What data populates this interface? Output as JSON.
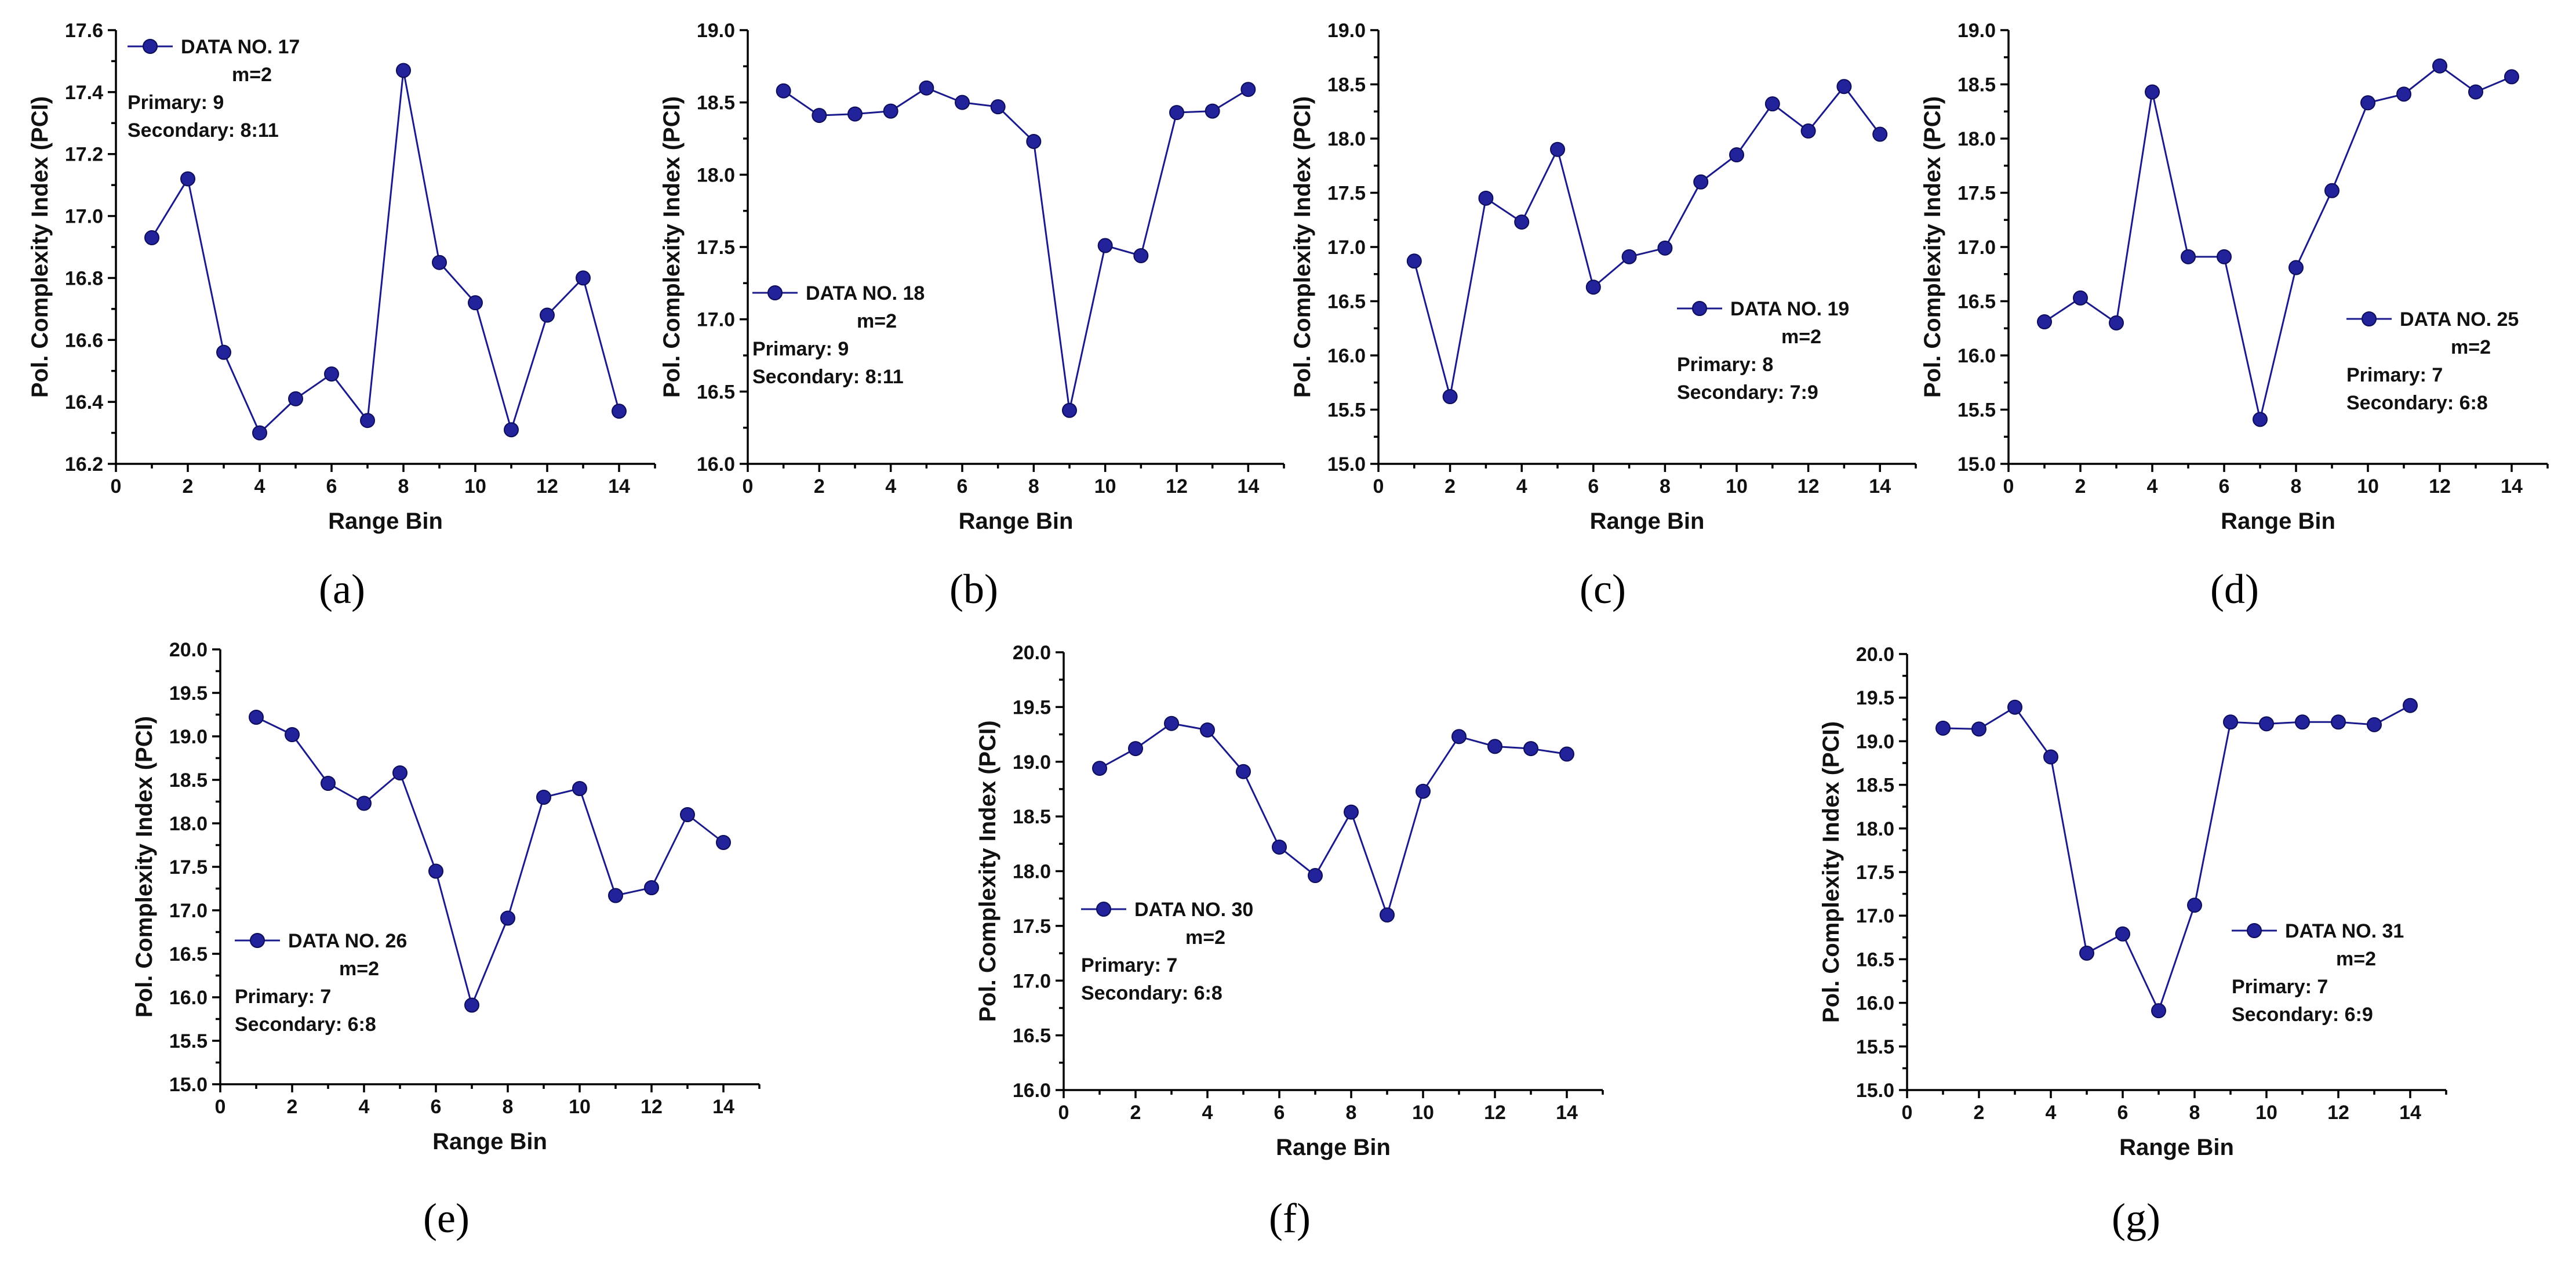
{
  "chart_data": [
    {
      "type": "line",
      "panel_label": "(a)",
      "legend_position": "top-left",
      "xlabel": "Range Bin",
      "ylabel": "Pol. Complexity Index (PCI)",
      "xlim": [
        0,
        15
      ],
      "ylim": [
        16.2,
        17.6
      ],
      "xticks": [
        0,
        2,
        4,
        6,
        8,
        10,
        12,
        14
      ],
      "yticks": [
        16.2,
        16.4,
        16.6,
        16.8,
        17.0,
        17.2,
        17.4,
        17.6
      ],
      "ytick_decimals": 1,
      "x": [
        1,
        2,
        3,
        4,
        5,
        6,
        7,
        8,
        9,
        10,
        11,
        12,
        13,
        14
      ],
      "series": [
        {
          "name": "DATA NO. 17",
          "values": [
            16.93,
            17.12,
            16.56,
            16.3,
            16.41,
            16.49,
            16.34,
            17.47,
            16.85,
            16.72,
            16.31,
            16.68,
            16.8,
            16.37
          ]
        }
      ],
      "legend": {
        "series": "DATA NO. 17",
        "m": "m=2",
        "primary": "Primary: 9",
        "secondary": "Secondary: 8:11"
      }
    },
    {
      "type": "line",
      "panel_label": "(b)",
      "legend_position": "middle-left",
      "xlabel": "Range Bin",
      "ylabel": "Pol. Complexity Index (PCI)",
      "xlim": [
        0,
        15
      ],
      "ylim": [
        16.0,
        19.0
      ],
      "xticks": [
        0,
        2,
        4,
        6,
        8,
        10,
        12,
        14
      ],
      "yticks": [
        16.0,
        16.5,
        17.0,
        17.5,
        18.0,
        18.5,
        19.0
      ],
      "ytick_decimals": 1,
      "x": [
        1,
        2,
        3,
        4,
        5,
        6,
        7,
        8,
        9,
        10,
        11,
        12,
        13,
        14
      ],
      "series": [
        {
          "name": "DATA NO. 18",
          "values": [
            18.58,
            18.41,
            18.42,
            18.44,
            18.6,
            18.5,
            18.47,
            18.23,
            16.37,
            17.51,
            17.44,
            18.43,
            18.44,
            18.59
          ]
        }
      ],
      "legend": {
        "series": "DATA NO. 18",
        "m": "m=2",
        "primary": "Primary: 9",
        "secondary": "Secondary: 8:11"
      }
    },
    {
      "type": "line",
      "panel_label": "(c)",
      "legend_position": "lower-right",
      "xlabel": "Range Bin",
      "ylabel": "Pol. Complexity Index (PCI)",
      "xlim": [
        0,
        15
      ],
      "ylim": [
        15.0,
        19.0
      ],
      "xticks": [
        0,
        2,
        4,
        6,
        8,
        10,
        12,
        14
      ],
      "yticks": [
        15.0,
        15.5,
        16.0,
        16.5,
        17.0,
        17.5,
        18.0,
        18.5,
        19.0
      ],
      "ytick_decimals": 1,
      "x": [
        1,
        2,
        3,
        4,
        5,
        6,
        7,
        8,
        9,
        10,
        11,
        12,
        13,
        14
      ],
      "series": [
        {
          "name": "DATA NO. 19",
          "values": [
            16.87,
            15.62,
            17.45,
            17.23,
            17.9,
            16.63,
            16.91,
            16.99,
            17.6,
            17.85,
            18.32,
            18.07,
            18.48,
            18.04
          ]
        }
      ],
      "legend": {
        "series": "DATA NO. 19",
        "m": "m=2",
        "primary": "Primary: 8",
        "secondary": "Secondary: 7:9"
      }
    },
    {
      "type": "line",
      "panel_label": "(d)",
      "legend_position": "lower-right",
      "xlabel": "Range Bin",
      "ylabel": "Pol. Complexity Index (PCI)",
      "xlim": [
        0,
        15
      ],
      "ylim": [
        15.0,
        19.0
      ],
      "xticks": [
        0,
        2,
        4,
        6,
        8,
        10,
        12,
        14
      ],
      "yticks": [
        15.0,
        15.5,
        16.0,
        16.5,
        17.0,
        17.5,
        18.0,
        18.5,
        19.0
      ],
      "ytick_decimals": 1,
      "x": [
        1,
        2,
        3,
        4,
        5,
        6,
        7,
        8,
        9,
        10,
        11,
        12,
        13,
        14
      ],
      "series": [
        {
          "name": "DATA NO. 25",
          "values": [
            16.31,
            16.53,
            16.3,
            18.43,
            16.91,
            16.91,
            15.41,
            16.81,
            17.52,
            18.33,
            18.41,
            18.67,
            18.43,
            18.57
          ]
        }
      ],
      "legend": {
        "series": "DATA NO. 25",
        "m": "m=2",
        "primary": "Primary: 7",
        "secondary": "Secondary: 6:8"
      }
    },
    {
      "type": "line",
      "panel_label": "(e)",
      "legend_position": "lower-left",
      "xlabel": "Range Bin",
      "ylabel": "Pol. Complexity Index (PCI)",
      "xlim": [
        0,
        15
      ],
      "ylim": [
        15.0,
        20.0
      ],
      "xticks": [
        0,
        2,
        4,
        6,
        8,
        10,
        12,
        14
      ],
      "yticks": [
        15.0,
        15.5,
        16.0,
        16.5,
        17.0,
        17.5,
        18.0,
        18.5,
        19.0,
        19.5,
        20.0
      ],
      "ytick_decimals": 1,
      "x": [
        1,
        2,
        3,
        4,
        5,
        6,
        7,
        8,
        9,
        10,
        11,
        12,
        13,
        14
      ],
      "series": [
        {
          "name": "DATA NO. 26",
          "values": [
            19.22,
            19.02,
            18.46,
            18.23,
            18.58,
            17.45,
            15.91,
            16.91,
            18.3,
            18.4,
            17.17,
            17.26,
            18.1,
            17.78
          ]
        }
      ],
      "legend": {
        "series": "DATA NO. 26",
        "m": "m=2",
        "primary": "Primary: 7",
        "secondary": "Secondary: 6:8"
      }
    },
    {
      "type": "line",
      "panel_label": "(f)",
      "legend_position": "lower-left",
      "xlabel": "Range Bin",
      "ylabel": "Pol. Complexity Index (PCI)",
      "xlim": [
        0,
        15
      ],
      "ylim": [
        16.0,
        20.0
      ],
      "xticks": [
        0,
        2,
        4,
        6,
        8,
        10,
        12,
        14
      ],
      "yticks": [
        16.0,
        16.5,
        17.0,
        17.5,
        18.0,
        18.5,
        19.0,
        19.5,
        20.0
      ],
      "ytick_decimals": 1,
      "x": [
        1,
        2,
        3,
        4,
        5,
        6,
        7,
        8,
        9,
        10,
        11,
        12,
        13,
        14
      ],
      "series": [
        {
          "name": "DATA NO. 30",
          "values": [
            18.94,
            19.12,
            19.35,
            19.29,
            18.91,
            18.22,
            17.96,
            18.54,
            17.6,
            18.73,
            19.23,
            19.14,
            19.12,
            19.07
          ]
        }
      ],
      "legend": {
        "series": "DATA NO. 30",
        "m": "m=2",
        "primary": "Primary: 7",
        "secondary": "Secondary: 6:8"
      }
    },
    {
      "type": "line",
      "panel_label": "(g)",
      "legend_position": "lower-right",
      "xlabel": "Range Bin",
      "ylabel": "Pol. Complexity Index (PCI)",
      "xlim": [
        0,
        15
      ],
      "ylim": [
        15.0,
        20.0
      ],
      "xticks": [
        0,
        2,
        4,
        6,
        8,
        10,
        12,
        14
      ],
      "yticks": [
        15.0,
        15.5,
        16.0,
        16.5,
        17.0,
        17.5,
        18.0,
        18.5,
        19.0,
        19.5,
        20.0
      ],
      "ytick_decimals": 1,
      "x": [
        1,
        2,
        3,
        4,
        5,
        6,
        7,
        8,
        9,
        10,
        11,
        12,
        13,
        14
      ],
      "series": [
        {
          "name": "DATA NO. 31",
          "values": [
            19.15,
            19.14,
            19.39,
            18.82,
            16.57,
            16.79,
            15.91,
            17.12,
            19.22,
            19.2,
            19.22,
            19.22,
            19.19,
            19.41
          ]
        }
      ],
      "legend": {
        "series": "DATA NO. 31",
        "m": "m=2",
        "primary": "Primary: 7",
        "secondary": "Secondary: 6:9"
      }
    }
  ],
  "colors": {
    "line": "#1a1a8c",
    "marker": "#22229a",
    "axis": "#000000"
  }
}
